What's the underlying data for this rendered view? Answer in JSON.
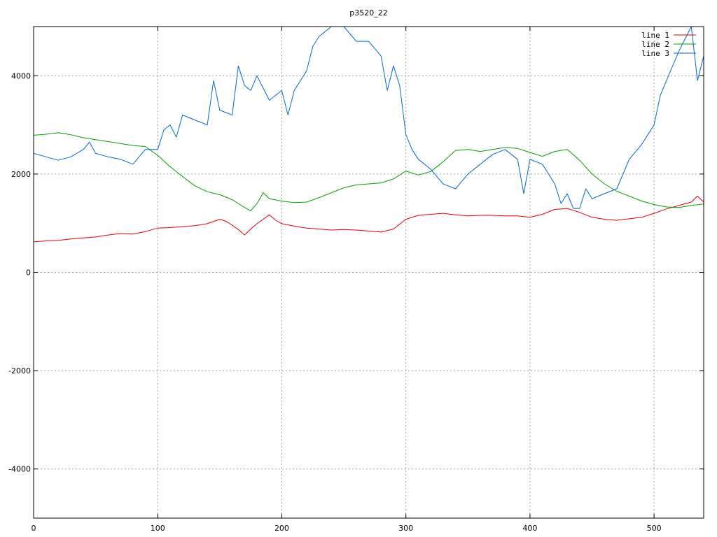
{
  "chart_data": {
    "type": "line",
    "title": "p3520_22",
    "xlabel": "",
    "ylabel": "",
    "xlim": [
      0,
      540
    ],
    "ylim": [
      -5000,
      5000
    ],
    "x_ticks": [
      0,
      100,
      200,
      300,
      400,
      500
    ],
    "x_tick_labels": [
      "0",
      "100",
      "200",
      "300",
      "400",
      "500"
    ],
    "y_ticks": [
      -4000,
      -2000,
      0,
      2000,
      4000
    ],
    "y_tick_labels": [
      "-4000",
      "-2000",
      "0",
      "2000",
      "4000"
    ],
    "grid": true,
    "legend_position": "top-right",
    "series": [
      {
        "name": "line 1",
        "color": "#e00000",
        "x": [
          0,
          10,
          20,
          30,
          40,
          50,
          60,
          70,
          80,
          90,
          100,
          110,
          120,
          130,
          140,
          150,
          155,
          160,
          165,
          170,
          175,
          180,
          185,
          190,
          195,
          200,
          210,
          220,
          230,
          240,
          250,
          260,
          270,
          280,
          290,
          300,
          310,
          320,
          330,
          340,
          350,
          360,
          370,
          380,
          390,
          400,
          410,
          420,
          430,
          440,
          450,
          460,
          470,
          480,
          490,
          500,
          510,
          520,
          530,
          535,
          540
        ],
        "values": [
          620,
          640,
          650,
          680,
          700,
          720,
          760,
          790,
          780,
          830,
          900,
          910,
          930,
          950,
          990,
          1080,
          1040,
          960,
          870,
          760,
          880,
          990,
          1080,
          1170,
          1060,
          990,
          940,
          900,
          880,
          860,
          870,
          860,
          840,
          820,
          880,
          1080,
          1160,
          1180,
          1200,
          1170,
          1150,
          1160,
          1160,
          1150,
          1150,
          1120,
          1180,
          1280,
          1300,
          1220,
          1120,
          1080,
          1060,
          1090,
          1120,
          1200,
          1290,
          1360,
          1430,
          1550,
          1430
        ]
      },
      {
        "name": "line 2",
        "color": "#00a000",
        "x": [
          0,
          10,
          20,
          30,
          40,
          50,
          60,
          70,
          80,
          90,
          100,
          110,
          120,
          130,
          140,
          150,
          160,
          170,
          175,
          180,
          185,
          190,
          200,
          210,
          220,
          230,
          240,
          250,
          260,
          270,
          280,
          290,
          300,
          310,
          320,
          330,
          340,
          350,
          360,
          370,
          380,
          390,
          400,
          410,
          420,
          430,
          440,
          450,
          460,
          470,
          480,
          490,
          500,
          510,
          520,
          530,
          540
        ],
        "values": [
          2790,
          2810,
          2840,
          2800,
          2740,
          2700,
          2660,
          2620,
          2580,
          2560,
          2380,
          2150,
          1950,
          1760,
          1640,
          1580,
          1480,
          1320,
          1250,
          1400,
          1620,
          1500,
          1450,
          1420,
          1430,
          1520,
          1620,
          1720,
          1780,
          1800,
          1820,
          1900,
          2060,
          1980,
          2050,
          2250,
          2480,
          2500,
          2460,
          2500,
          2540,
          2520,
          2440,
          2360,
          2460,
          2500,
          2280,
          2000,
          1800,
          1650,
          1550,
          1450,
          1380,
          1330,
          1320,
          1360,
          1390
        ]
      },
      {
        "name": "line 3",
        "color": "#0068d0",
        "x": [
          0,
          10,
          20,
          30,
          40,
          45,
          50,
          60,
          70,
          80,
          90,
          100,
          105,
          110,
          115,
          120,
          130,
          140,
          145,
          150,
          160,
          165,
          170,
          175,
          180,
          190,
          200,
          205,
          210,
          220,
          225,
          230,
          240,
          250,
          260,
          270,
          280,
          285,
          290,
          295,
          300,
          305,
          310,
          320,
          330,
          340,
          350,
          360,
          370,
          380,
          390,
          395,
          400,
          410,
          420,
          425,
          430,
          435,
          440,
          445,
          450,
          460,
          470,
          480,
          490,
          500,
          505,
          510,
          520,
          530,
          535,
          540
        ],
        "values": [
          2420,
          2350,
          2280,
          2350,
          2500,
          2650,
          2420,
          2350,
          2300,
          2200,
          2500,
          2500,
          2900,
          3000,
          2750,
          3200,
          3100,
          3000,
          3900,
          3300,
          3200,
          4200,
          3800,
          3700,
          4000,
          3500,
          3700,
          3200,
          3700,
          4100,
          4600,
          4800,
          5000,
          5000,
          4700,
          4700,
          4400,
          3700,
          4200,
          3800,
          2800,
          2500,
          2300,
          2100,
          1800,
          1700,
          2000,
          2200,
          2400,
          2500,
          2300,
          1600,
          2300,
          2200,
          1800,
          1400,
          1600,
          1300,
          1300,
          1700,
          1500,
          1600,
          1700,
          2300,
          2600,
          3000,
          3600,
          3900,
          4500,
          5000,
          3900,
          4400
        ]
      }
    ]
  }
}
